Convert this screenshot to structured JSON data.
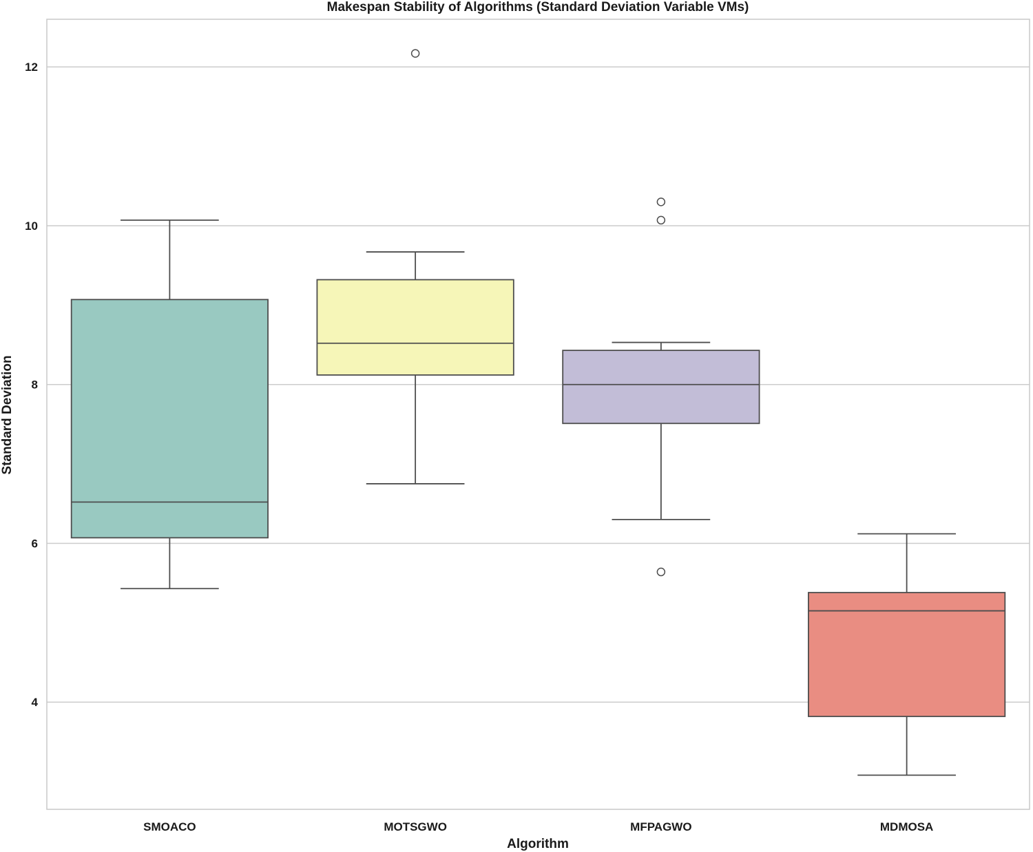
{
  "chart_data": {
    "type": "box",
    "title": "Makespan Stability of Algorithms (Standard Deviation Variable VMs)",
    "xlabel": "Algorithm",
    "ylabel": "Standard Deviation",
    "ylim": [
      2.65,
      12.6
    ],
    "yticks": [
      4,
      6,
      8,
      10,
      12
    ],
    "grid": "horizontal",
    "categories": [
      "SMOACO",
      "MOTSGWO",
      "MFPAGWO",
      "MDMOSA"
    ],
    "series": [
      {
        "name": "SMOACO",
        "color": "#99c9c1",
        "whisker_low": 5.43,
        "q1": 6.07,
        "median": 6.52,
        "q3": 9.07,
        "whisker_high": 10.07,
        "outliers": []
      },
      {
        "name": "MOTSGWO",
        "color": "#f6f6b8",
        "whisker_low": 6.75,
        "q1": 8.12,
        "median": 8.52,
        "q3": 9.32,
        "whisker_high": 9.67,
        "outliers": [
          12.17
        ]
      },
      {
        "name": "MFPAGWO",
        "color": "#c2bdd7",
        "whisker_low": 6.3,
        "q1": 7.51,
        "median": 8.0,
        "q3": 8.43,
        "whisker_high": 8.53,
        "outliers": [
          10.3,
          10.07,
          5.64
        ]
      },
      {
        "name": "MDMOSA",
        "color": "#e98d82",
        "whisker_low": 3.08,
        "q1": 3.82,
        "median": 5.15,
        "q3": 5.38,
        "whisker_high": 6.12,
        "outliers": []
      }
    ]
  }
}
